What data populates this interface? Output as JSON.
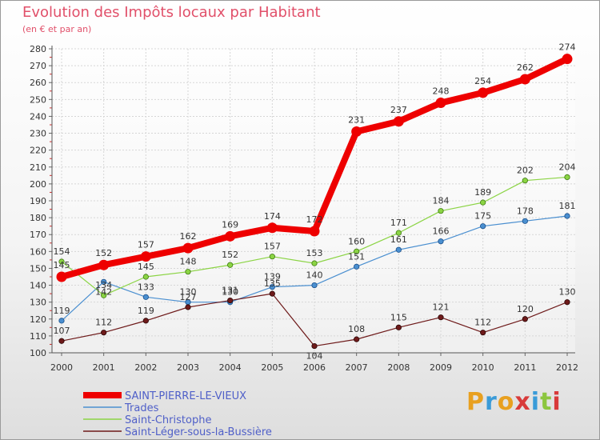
{
  "header": {
    "title": "Evolution des Impôts locaux par Habitant",
    "subtitle": "(en € et par an)"
  },
  "logo": {
    "text": "Proxiti",
    "colors": [
      "#e8a020",
      "#3a9bd8",
      "#e8a020",
      "#d83a3a",
      "#3a9bd8",
      "#8cc63f",
      "#d83a3a"
    ]
  },
  "chart_data": {
    "type": "line",
    "title": "Evolution des Impôts locaux par Habitant",
    "subtitle": "(en € et par an)",
    "xlabel": "",
    "ylabel": "",
    "x": [
      "2000",
      "2001",
      "2002",
      "2003",
      "2004",
      "2005",
      "2006",
      "2007",
      "2008",
      "2009",
      "2010",
      "2011",
      "2012"
    ],
    "ylim": [
      100,
      280
    ],
    "yticks": [
      100,
      110,
      120,
      130,
      140,
      150,
      160,
      170,
      180,
      190,
      200,
      210,
      220,
      230,
      240,
      250,
      260,
      270,
      280
    ],
    "grid": true,
    "legend_position": "bottom-left",
    "series": [
      {
        "name": "SAINT-PIERRE-LE-VIEUX",
        "color": "#ee0000",
        "values": [
          145,
          152,
          157,
          162,
          169,
          174,
          172,
          231,
          237,
          248,
          254,
          262,
          274
        ]
      },
      {
        "name": "Trades",
        "color": "#4a8fd0",
        "values": [
          119,
          142,
          133,
          130,
          130,
          139,
          140,
          151,
          161,
          166,
          175,
          178,
          181
        ]
      },
      {
        "name": "Saint-Christophe",
        "color": "#8bd444",
        "values": [
          154,
          134,
          145,
          148,
          152,
          157,
          153,
          160,
          171,
          184,
          189,
          202,
          204
        ]
      },
      {
        "name": "Saint-Léger-sous-la-Bussière",
        "color": "#6e1a1a",
        "values": [
          107,
          112,
          119,
          127,
          131,
          135,
          104,
          108,
          115,
          121,
          112,
          120,
          130
        ]
      }
    ]
  }
}
